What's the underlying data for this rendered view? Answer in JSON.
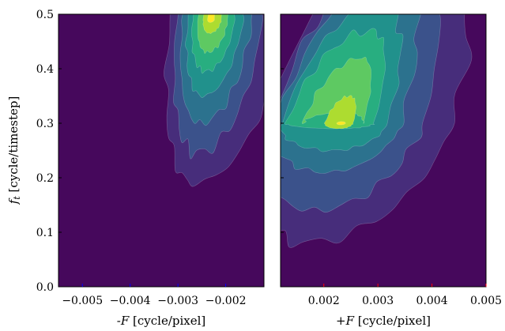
{
  "chart_data": [
    {
      "type": "contour",
      "panel": "left",
      "xlabel": "-F [cycle/pixel]",
      "xlabel_prefix": "-",
      "xlabel_var": "F",
      "xlabel_unit": "[cycle/pixel]",
      "ylabel": "f_t [cycle/timestep]",
      "ylabel_var": "f",
      "ylabel_sub": "t",
      "ylabel_unit": "[cycle/timestep]",
      "xlim": [
        -0.0055,
        -0.0012
      ],
      "ylim": [
        0.0,
        0.5
      ],
      "xticks": [
        -0.005,
        -0.004,
        -0.003,
        -0.002
      ],
      "xtick_labels": [
        "−0.005",
        "−0.004",
        "−0.003",
        "−0.002"
      ],
      "xtick_color": "#0000ff",
      "yticks": [
        0.0,
        0.1,
        0.2,
        0.3,
        0.4,
        0.5
      ],
      "ytick_labels": [
        "0.0",
        "0.1",
        "0.2",
        "0.3",
        "0.4",
        "0.5"
      ],
      "colormap": "viridis",
      "background_color": "#46085c",
      "peak": {
        "x": -0.00232,
        "y": 0.49
      },
      "grid": false
    },
    {
      "type": "contour",
      "panel": "right",
      "xlabel": "+F [cycle/pixel]",
      "xlabel_prefix": "+",
      "xlabel_var": "F",
      "xlabel_unit": "[cycle/pixel]",
      "xlim": [
        0.0012,
        0.005
      ],
      "ylim": [
        0.0,
        0.5
      ],
      "xticks": [
        0.002,
        0.003,
        0.004,
        0.005
      ],
      "xtick_labels": [
        "0.002",
        "0.003",
        "0.004",
        "0.005"
      ],
      "xtick_color": "#ff0000",
      "colormap": "viridis",
      "background_color": "#46085c",
      "peak": {
        "x": 0.00232,
        "y": 0.3
      },
      "grid": false
    }
  ]
}
